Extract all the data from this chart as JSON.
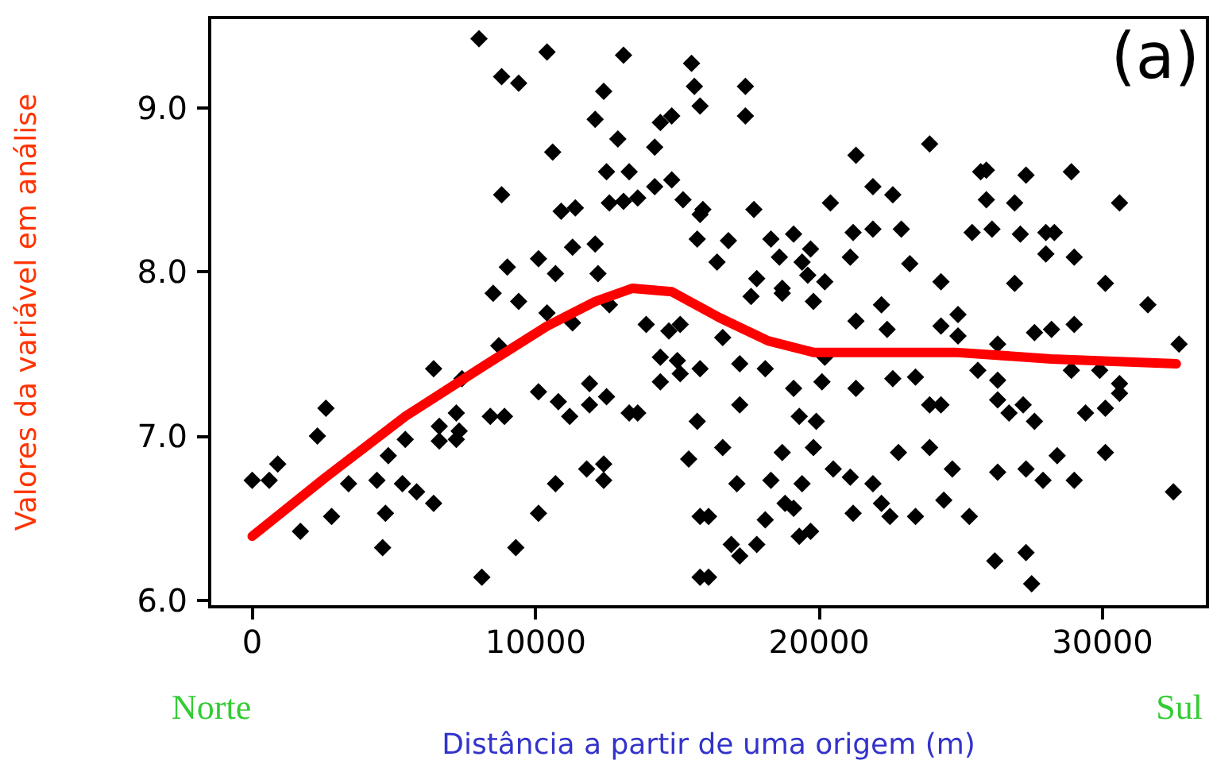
{
  "chart_data": {
    "type": "scatter",
    "xlabel": "Distância a partir de uma origem (m)",
    "ylabel": "Valores da variável em análise",
    "annotations": [
      "(a)",
      "Norte",
      "Sul"
    ],
    "xlim": [
      -1500,
      33700
    ],
    "xticks": [
      0,
      10000,
      20000,
      30000
    ],
    "ylim": [
      5.96,
      9.55
    ],
    "yticks": [
      {
        "value": 6,
        "label": "6.0"
      },
      {
        "value": 7,
        "label": "7.0"
      },
      {
        "value": 8,
        "label": "8.0"
      },
      {
        "value": 9,
        "label": "9.0"
      }
    ],
    "grid": false,
    "series": [
      {
        "color": "#000000",
        "marker": "diamond",
        "x": [
          8000,
          10400,
          13100,
          15500,
          8800,
          9400,
          12400,
          15600,
          15800,
          12100,
          14400,
          14800,
          12900,
          10600,
          14200,
          12500,
          13300,
          8800,
          10900,
          11400,
          12600,
          13100,
          13600,
          14200,
          14800,
          15200,
          15800,
          15700,
          11300,
          12100,
          9000,
          10100,
          10700,
          12200,
          8500,
          9400,
          10400,
          17400,
          17400,
          23900,
          21300,
          25900,
          25700,
          27300,
          28900,
          21900,
          22600,
          25900,
          26900,
          30600,
          20400,
          15900,
          17700,
          21200,
          21900,
          22900,
          25400,
          26100,
          27100,
          28000,
          28300,
          16800,
          18300,
          19100,
          19700,
          21100,
          23200,
          28000,
          29000,
          16400,
          18600,
          19400,
          17800,
          18700,
          19600,
          20200,
          24300,
          26900,
          30100,
          31600,
          22200,
          11300,
          12600,
          13900,
          14700,
          15100,
          8700,
          6400,
          7400,
          14400,
          15000,
          14400,
          15100,
          15800,
          10100,
          10800,
          11200,
          11900,
          11900,
          12500,
          13300,
          13600,
          8400,
          8900,
          2600,
          15700,
          7200,
          6600,
          7300,
          6600,
          7200,
          2300,
          5400,
          4800,
          900,
          0,
          600,
          3400,
          4400,
          5300,
          5800,
          6400,
          15400,
          10700,
          11800,
          12400,
          12400,
          10100,
          2800,
          4700,
          1700,
          4600,
          9300,
          8100,
          15800,
          15800,
          17600,
          18700,
          19800,
          21300,
          22400,
          24300,
          24900,
          24900,
          27600,
          28200,
          29000,
          32700,
          16600,
          17200,
          18100,
          20200,
          25600,
          26300,
          26300,
          28900,
          29900,
          30600,
          30600,
          19100,
          20100,
          21300,
          22600,
          23400,
          23900,
          24300,
          26300,
          26700,
          27200,
          27600,
          29400,
          30100,
          17200,
          19300,
          19900,
          16600,
          18700,
          19800,
          22800,
          23900,
          28400,
          30100,
          20500,
          21100,
          21900,
          24700,
          26300,
          27300,
          27900,
          29000,
          17100,
          18300,
          19400,
          18800,
          19100,
          22200,
          22500,
          21200,
          23400,
          24400,
          25300,
          16100,
          18100,
          32500,
          16900,
          17200,
          17800,
          19300,
          19700,
          26200,
          27300,
          27500,
          16100
        ],
        "values": [
          9.42,
          9.34,
          9.32,
          9.27,
          9.19,
          9.15,
          9.1,
          9.13,
          9.01,
          8.93,
          8.91,
          8.95,
          8.81,
          8.73,
          8.76,
          8.61,
          8.61,
          8.47,
          8.37,
          8.39,
          8.42,
          8.43,
          8.45,
          8.52,
          8.56,
          8.44,
          8.35,
          8.2,
          8.15,
          8.17,
          8.03,
          8.08,
          7.99,
          7.99,
          7.87,
          7.82,
          7.75,
          9.13,
          8.95,
          8.78,
          8.71,
          8.62,
          8.61,
          8.59,
          8.61,
          8.52,
          8.47,
          8.44,
          8.42,
          8.42,
          8.42,
          8.38,
          8.38,
          8.24,
          8.26,
          8.26,
          8.24,
          8.26,
          8.23,
          8.24,
          8.24,
          8.19,
          8.2,
          8.23,
          8.14,
          8.09,
          8.05,
          8.11,
          8.09,
          8.06,
          8.09,
          8.06,
          7.96,
          7.9,
          7.98,
          7.94,
          7.94,
          7.93,
          7.93,
          7.8,
          7.8,
          7.69,
          7.8,
          7.68,
          7.64,
          7.68,
          7.55,
          7.41,
          7.35,
          7.48,
          7.46,
          7.33,
          7.38,
          7.41,
          7.27,
          7.21,
          7.12,
          7.32,
          7.19,
          7.24,
          7.14,
          7.14,
          7.12,
          7.12,
          7.17,
          7.09,
          7.14,
          7.06,
          7.03,
          6.97,
          6.98,
          7.0,
          6.98,
          6.88,
          6.83,
          6.73,
          6.73,
          6.71,
          6.73,
          6.71,
          6.66,
          6.59,
          6.86,
          6.71,
          6.8,
          6.83,
          6.73,
          6.53,
          6.51,
          6.53,
          6.42,
          6.32,
          6.32,
          6.14,
          6.51,
          6.14,
          7.85,
          7.87,
          7.82,
          7.7,
          7.65,
          7.67,
          7.74,
          7.61,
          7.63,
          7.65,
          7.68,
          7.56,
          7.6,
          7.44,
          7.41,
          7.48,
          7.4,
          7.34,
          7.56,
          7.4,
          7.4,
          7.32,
          7.26,
          7.29,
          7.33,
          7.29,
          7.35,
          7.36,
          7.19,
          7.19,
          7.22,
          7.14,
          7.19,
          7.09,
          7.14,
          7.17,
          7.19,
          7.12,
          7.09,
          6.93,
          6.9,
          6.93,
          6.9,
          6.93,
          6.88,
          6.9,
          6.8,
          6.75,
          6.71,
          6.8,
          6.78,
          6.8,
          6.73,
          6.73,
          6.71,
          6.73,
          6.71,
          6.59,
          6.56,
          6.59,
          6.51,
          6.53,
          6.51,
          6.61,
          6.51,
          6.51,
          6.49,
          6.66,
          6.34,
          6.27,
          6.34,
          6.39,
          6.42,
          6.24,
          6.29,
          6.1,
          6.14
        ]
      },
      {
        "type": "line",
        "color": "#ff0000",
        "marker": "none",
        "line_style": "solid",
        "x": [
          0,
          2600,
          5400,
          8200,
          10400,
          12100,
          13400,
          14800,
          16500,
          18200,
          19800,
          24800,
          28200,
          32600
        ],
        "values": [
          6.39,
          6.75,
          7.12,
          7.43,
          7.67,
          7.82,
          7.9,
          7.88,
          7.72,
          7.58,
          7.51,
          7.51,
          7.47,
          7.44
        ]
      }
    ]
  }
}
